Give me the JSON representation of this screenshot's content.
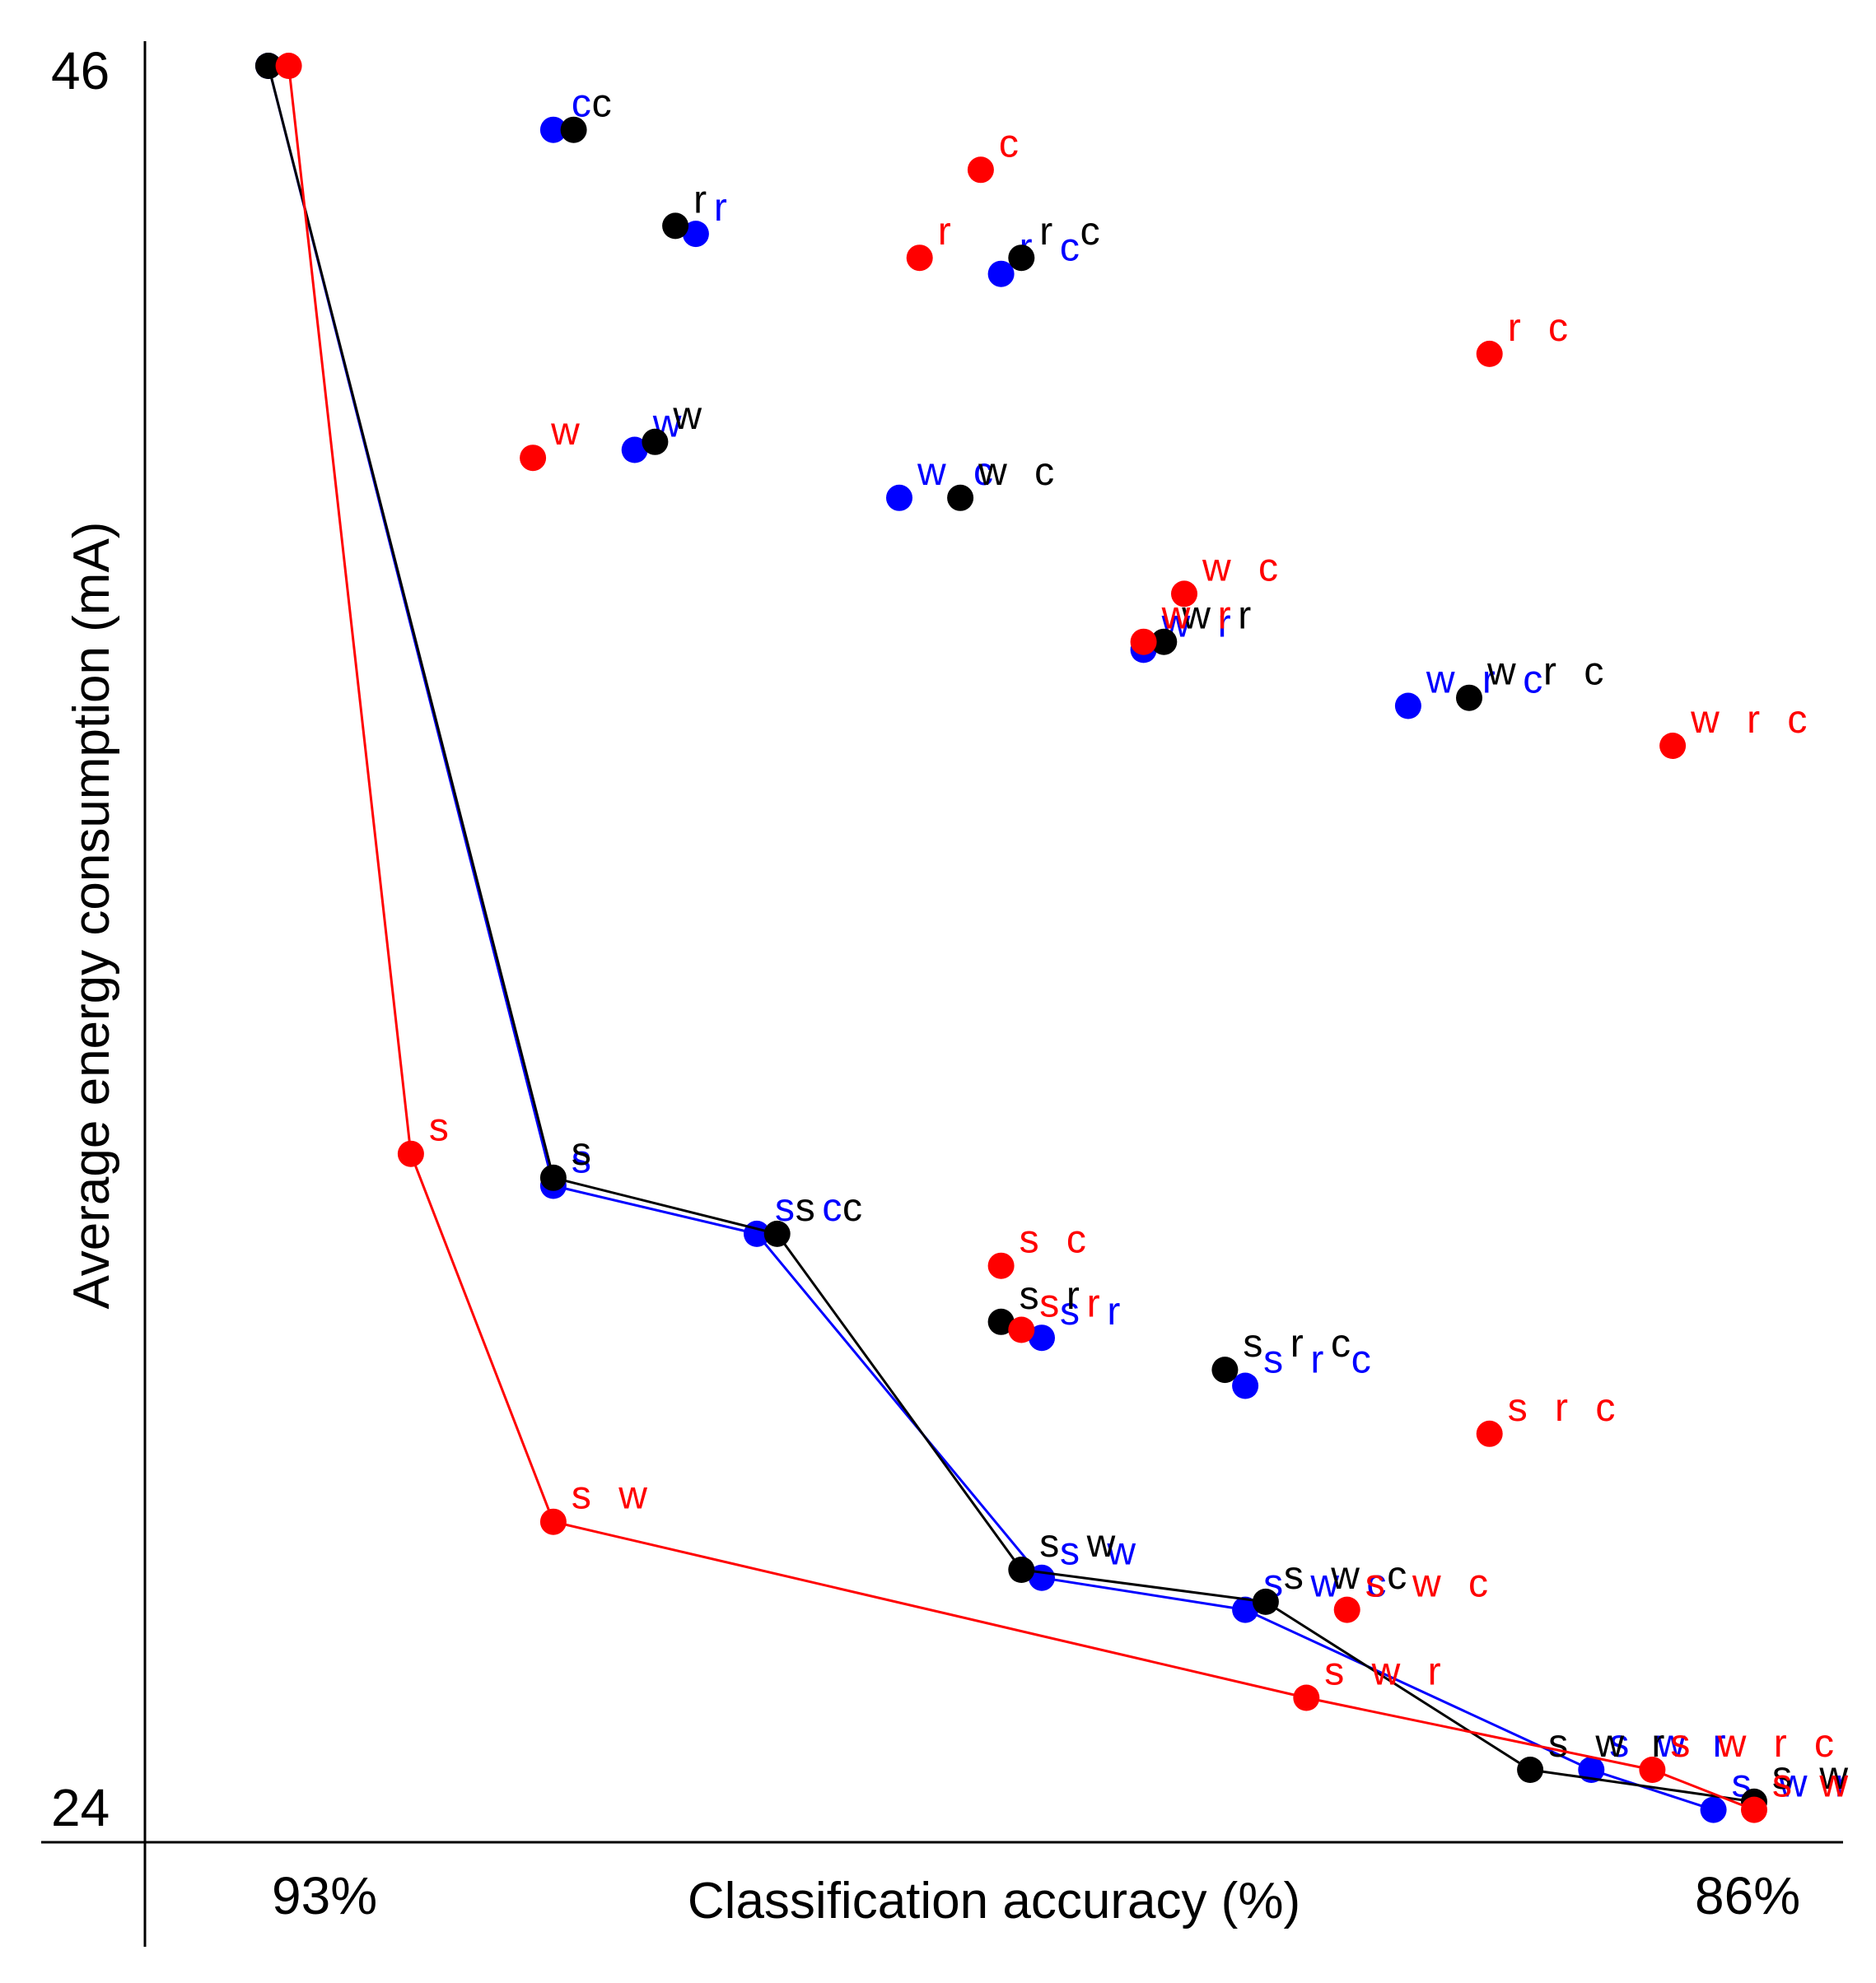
{
  "chart_data": {
    "type": "scatter",
    "xlabel": "Classification accuracy (%)",
    "ylabel": "Average energy consumption (mA)",
    "x_tick_labels": [
      "93%",
      "86%"
    ],
    "y_tick_labels": [
      "46",
      "24"
    ],
    "xlim": [
      93,
      86
    ],
    "ylim": [
      24,
      46
    ],
    "grid": false,
    "series": [
      {
        "color": "#0000ff",
        "frontier": [
          0,
          1,
          2,
          3,
          4,
          5,
          6
        ],
        "points": [
          {
            "x": 93.3,
            "y": 46.0,
            "label": ""
          },
          {
            "x": 91.9,
            "y": 32.0,
            "label": "s"
          },
          {
            "x": 90.9,
            "y": 31.4,
            "label": "s c"
          },
          {
            "x": 89.5,
            "y": 27.1,
            "label": "s w"
          },
          {
            "x": 88.5,
            "y": 26.7,
            "label": "s w c"
          },
          {
            "x": 86.8,
            "y": 24.7,
            "label": "s w r"
          },
          {
            "x": 86.2,
            "y": 24.2,
            "label": "s w r c"
          },
          {
            "x": 91.9,
            "y": 45.2,
            "label": "c"
          },
          {
            "x": 91.2,
            "y": 43.9,
            "label": "r"
          },
          {
            "x": 91.5,
            "y": 41.2,
            "label": "w"
          },
          {
            "x": 89.7,
            "y": 43.4,
            "label": "r c"
          },
          {
            "x": 90.2,
            "y": 40.6,
            "label": "w c"
          },
          {
            "x": 89.0,
            "y": 38.7,
            "label": "w r"
          },
          {
            "x": 87.7,
            "y": 38.0,
            "label": "w r c"
          },
          {
            "x": 89.5,
            "y": 30.1,
            "label": "s r"
          },
          {
            "x": 88.5,
            "y": 29.5,
            "label": "s r c"
          }
        ]
      },
      {
        "color": "#000000",
        "frontier": [
          0,
          1,
          2,
          3,
          4,
          5,
          6
        ],
        "points": [
          {
            "x": 93.3,
            "y": 46.0,
            "label": ""
          },
          {
            "x": 91.9,
            "y": 32.1,
            "label": "s"
          },
          {
            "x": 90.8,
            "y": 31.4,
            "label": "s c"
          },
          {
            "x": 89.6,
            "y": 27.2,
            "label": "s w"
          },
          {
            "x": 88.4,
            "y": 26.8,
            "label": "s w c"
          },
          {
            "x": 87.1,
            "y": 24.7,
            "label": "s w r"
          },
          {
            "x": 86.0,
            "y": 24.3,
            "label": "s w r c"
          },
          {
            "x": 91.8,
            "y": 45.2,
            "label": "c"
          },
          {
            "x": 91.3,
            "y": 44.0,
            "label": "r"
          },
          {
            "x": 91.4,
            "y": 41.3,
            "label": "w"
          },
          {
            "x": 89.6,
            "y": 43.6,
            "label": "r c"
          },
          {
            "x": 89.9,
            "y": 40.6,
            "label": "w c"
          },
          {
            "x": 88.9,
            "y": 38.8,
            "label": "w r"
          },
          {
            "x": 87.4,
            "y": 38.1,
            "label": "w r c"
          },
          {
            "x": 89.7,
            "y": 30.3,
            "label": "s r"
          },
          {
            "x": 88.6,
            "y": 29.7,
            "label": "s r c"
          }
        ]
      },
      {
        "color": "#ff0000",
        "frontier": [
          0,
          1,
          2,
          3,
          4,
          5
        ],
        "points": [
          {
            "x": 93.2,
            "y": 46.0,
            "label": ""
          },
          {
            "x": 92.6,
            "y": 32.4,
            "label": "s"
          },
          {
            "x": 91.9,
            "y": 27.8,
            "label": "s w"
          },
          {
            "x": 88.2,
            "y": 25.6,
            "label": "s w r"
          },
          {
            "x": 86.5,
            "y": 24.7,
            "label": "s w r c"
          },
          {
            "x": 86.0,
            "y": 24.2,
            "label": "s w r c"
          },
          {
            "x": 89.8,
            "y": 44.7,
            "label": "c"
          },
          {
            "x": 90.1,
            "y": 43.6,
            "label": "r"
          },
          {
            "x": 92.0,
            "y": 41.1,
            "label": "w"
          },
          {
            "x": 87.3,
            "y": 42.4,
            "label": "r c"
          },
          {
            "x": 88.8,
            "y": 39.4,
            "label": "w c"
          },
          {
            "x": 89.0,
            "y": 38.8,
            "label": "w r"
          },
          {
            "x": 86.4,
            "y": 37.5,
            "label": "w r c"
          },
          {
            "x": 89.7,
            "y": 31.0,
            "label": "s c"
          },
          {
            "x": 89.6,
            "y": 30.2,
            "label": "s r"
          },
          {
            "x": 87.3,
            "y": 28.9,
            "label": "s r c"
          },
          {
            "x": 88.0,
            "y": 26.7,
            "label": "s w c"
          }
        ]
      }
    ]
  }
}
